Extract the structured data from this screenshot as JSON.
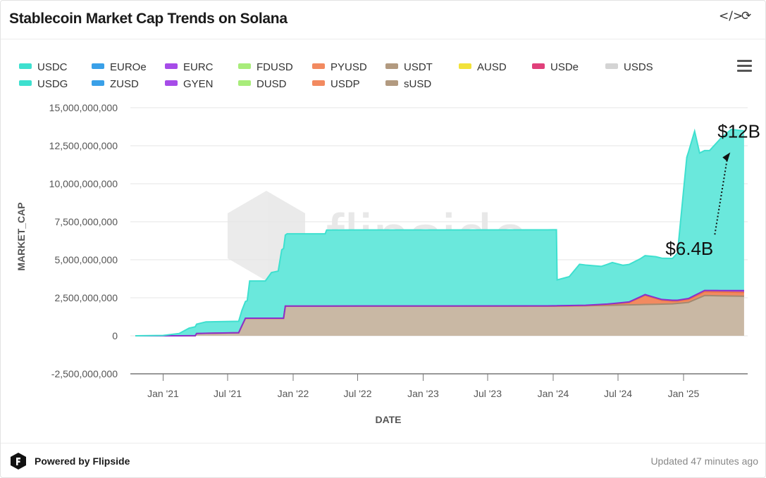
{
  "header": {
    "title": "Stablecoin Market Cap Trends on Solana",
    "embed_icon": "code-icon",
    "refresh_icon": "refresh-icon"
  },
  "footer": {
    "powered_by": "Powered by Flipside",
    "updated": "Updated 47 minutes ago"
  },
  "watermark": "flipside",
  "chart_data": {
    "type": "area",
    "stacked": true,
    "xlabel": "DATE",
    "ylabel": "MARKET_CAP",
    "ylim": [
      -2500000000,
      15000000000
    ],
    "yticks": [
      -2500000000,
      0,
      2500000000,
      5000000000,
      7500000000,
      10000000000,
      12500000000,
      15000000000
    ],
    "ytick_labels": [
      "-2,500,000,000",
      "0",
      "2,500,000,000",
      "5,000,000,000",
      "7,500,000,000",
      "10,000,000,000",
      "12,500,000,000",
      "15,000,000,000"
    ],
    "xlim": [
      "2020-10-01",
      "2025-06-30"
    ],
    "xticks": [
      "2021-01-01",
      "2021-07-01",
      "2022-01-01",
      "2022-07-01",
      "2023-01-01",
      "2023-07-01",
      "2024-01-01",
      "2024-07-01",
      "2025-01-01"
    ],
    "xtick_labels": [
      "Jan '21",
      "Jul '21",
      "Jan '22",
      "Jul '22",
      "Jan '23",
      "Jul '23",
      "Jan '24",
      "Jul '24",
      "Jan '25"
    ],
    "grid": "horizontal",
    "legend_position": "top",
    "legend": [
      {
        "name": "USDC",
        "color": "#3ee0cf"
      },
      {
        "name": "EUROe",
        "color": "#3aa0e8"
      },
      {
        "name": "EURC",
        "color": "#a64ce8"
      },
      {
        "name": "FDUSD",
        "color": "#a8ec7a"
      },
      {
        "name": "PYUSD",
        "color": "#f28a60"
      },
      {
        "name": "USDT",
        "color": "#b29a80"
      },
      {
        "name": "AUSD",
        "color": "#f2e23a"
      },
      {
        "name": "USDe",
        "color": "#e0407a"
      },
      {
        "name": "USDS",
        "color": "#d4d4d4"
      },
      {
        "name": "USDG",
        "color": "#3ee0cf"
      },
      {
        "name": "ZUSD",
        "color": "#3aa0e8"
      },
      {
        "name": "GYEN",
        "color": "#a64ce8"
      },
      {
        "name": "DUSD",
        "color": "#a8ec7a"
      },
      {
        "name": "USDP",
        "color": "#f28a60"
      },
      {
        "name": "sUSD",
        "color": "#b29a80"
      }
    ],
    "series": [
      {
        "name": "USDT",
        "color": "#c9b8a4",
        "line_color": "#a38a70",
        "points": [
          [
            "2020-10-15",
            0
          ],
          [
            "2021-04-01",
            0
          ],
          [
            "2021-04-05",
            150000000
          ],
          [
            "2021-08-01",
            200000000
          ],
          [
            "2021-08-20",
            1150000000
          ],
          [
            "2021-12-05",
            1150000000
          ],
          [
            "2021-12-10",
            1950000000
          ],
          [
            "2023-12-31",
            1950000000
          ],
          [
            "2024-06-01",
            2000000000
          ],
          [
            "2024-12-01",
            2100000000
          ],
          [
            "2025-01-15",
            2200000000
          ],
          [
            "2025-03-01",
            2650000000
          ],
          [
            "2025-06-20",
            2600000000
          ]
        ]
      },
      {
        "name": "PYUSD",
        "color": "#f28a60",
        "line_color": "#e8744a",
        "points": [
          [
            "2020-10-15",
            0
          ],
          [
            "2024-04-01",
            0
          ],
          [
            "2024-06-01",
            50000000
          ],
          [
            "2024-08-01",
            150000000
          ],
          [
            "2024-09-15",
            600000000
          ],
          [
            "2024-11-01",
            250000000
          ],
          [
            "2024-12-15",
            150000000
          ],
          [
            "2025-03-01",
            250000000
          ],
          [
            "2025-06-20",
            250000000
          ]
        ]
      },
      {
        "name": "EURC",
        "color": "#a64ce8",
        "line_color": "#8a30cc",
        "points": [
          [
            "2020-10-15",
            0
          ],
          [
            "2024-01-01",
            20000000
          ],
          [
            "2025-01-01",
            60000000
          ],
          [
            "2025-06-20",
            120000000
          ]
        ]
      },
      {
        "name": "USDC",
        "color": "#6ae8dc",
        "line_color": "#3ee0cf",
        "points": [
          [
            "2020-10-15",
            0
          ],
          [
            "2021-01-01",
            20000000
          ],
          [
            "2021-02-15",
            150000000
          ],
          [
            "2021-03-15",
            500000000
          ],
          [
            "2021-05-01",
            750000000
          ],
          [
            "2021-08-01",
            750000000
          ],
          [
            "2021-08-10",
            1000000000
          ],
          [
            "2021-08-25",
            1150000000
          ],
          [
            "2021-09-01",
            2450000000
          ],
          [
            "2021-10-15",
            2450000000
          ],
          [
            "2021-11-01",
            3000000000
          ],
          [
            "2021-11-20",
            3100000000
          ],
          [
            "2021-11-30",
            4500000000
          ],
          [
            "2021-12-15",
            4750000000
          ],
          [
            "2022-04-01",
            4750000000
          ],
          [
            "2022-04-05",
            5000000000
          ],
          [
            "2023-12-15",
            5000000000
          ],
          [
            "2024-01-10",
            5000000000
          ],
          [
            "2024-01-12",
            1700000000
          ],
          [
            "2024-02-15",
            1900000000
          ],
          [
            "2024-03-15",
            2700000000
          ],
          [
            "2024-05-15",
            2500000000
          ],
          [
            "2024-06-15",
            2700000000
          ],
          [
            "2024-07-15",
            2450000000
          ],
          [
            "2024-09-01",
            2500000000
          ],
          [
            "2024-10-15",
            2700000000
          ],
          [
            "2024-12-01",
            2750000000
          ],
          [
            "2024-12-15",
            3100000000
          ],
          [
            "2025-01-10",
            9300000000
          ],
          [
            "2025-02-01",
            10800000000
          ],
          [
            "2025-02-15",
            9200000000
          ],
          [
            "2025-03-15",
            9200000000
          ],
          [
            "2025-04-15",
            10000000000
          ],
          [
            "2025-05-15",
            10600000000
          ],
          [
            "2025-06-20",
            10500000000
          ]
        ]
      }
    ],
    "annotations": [
      {
        "text": "$6.4B",
        "x": "2024-12-01",
        "y": 5500000000
      },
      {
        "text": "$12B",
        "x": "2025-05-20",
        "y": 12200000000
      }
    ]
  }
}
